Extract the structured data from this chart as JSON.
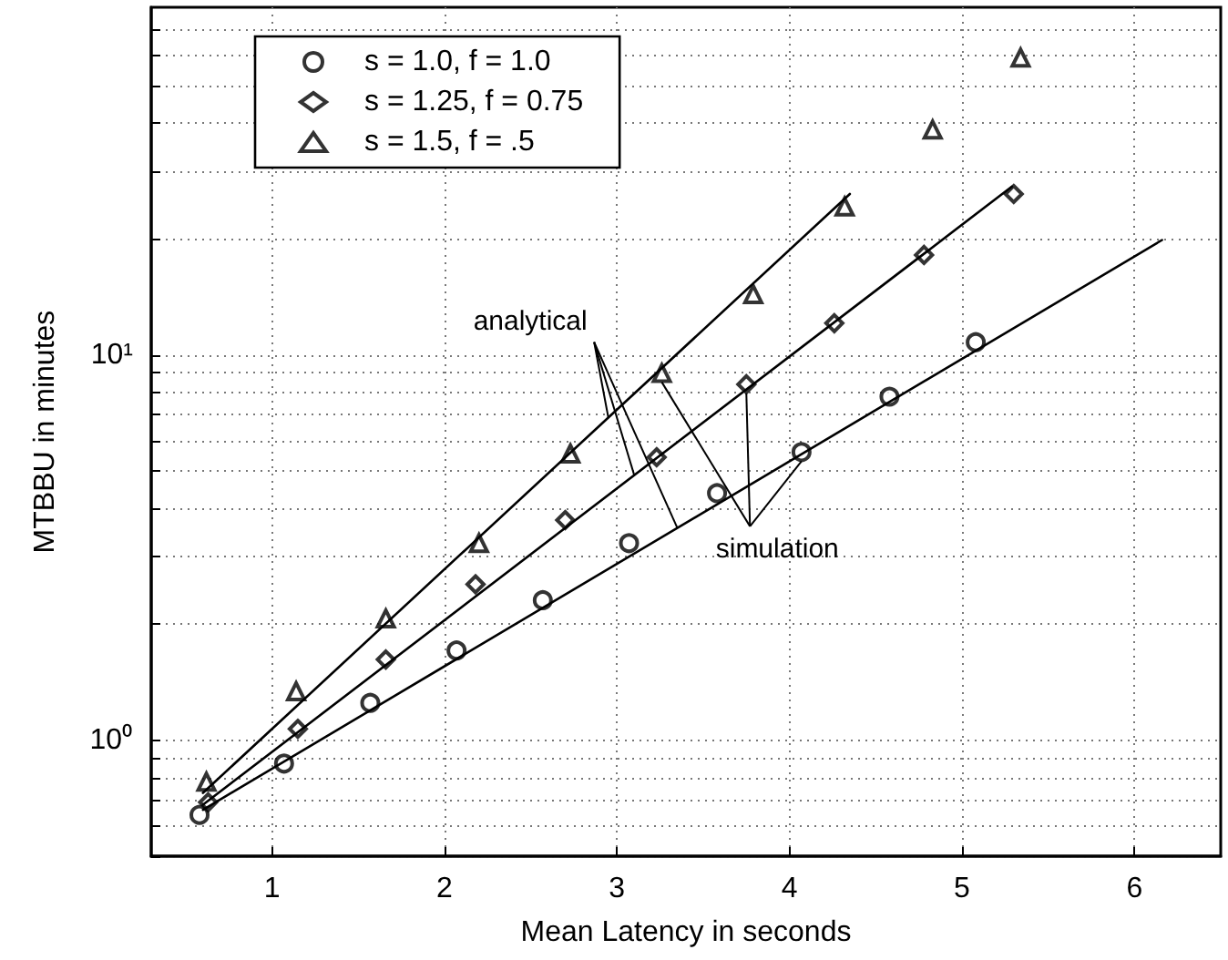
{
  "chart_data": {
    "type": "scatter",
    "xlabel": "Mean Latency in seconds",
    "ylabel": "MTBBU in minutes",
    "log": "y",
    "grid": true,
    "legend": "top left",
    "xlim": [
      0.3,
      6.5
    ],
    "xticks": [
      1,
      2,
      3,
      4,
      5,
      6
    ],
    "ylim": [
      0.5,
      80
    ],
    "yticks": [
      {
        "value": 0.5,
        "label": null
      },
      {
        "value": 0.6,
        "label": null
      },
      {
        "value": 0.7,
        "label": null
      },
      {
        "value": 0.8,
        "label": null
      },
      {
        "value": 0.9,
        "label": null
      },
      {
        "value": 1,
        "label": "10⁰"
      },
      {
        "value": 2,
        "label": null
      },
      {
        "value": 3,
        "label": null
      },
      {
        "value": 4,
        "label": null
      },
      {
        "value": 5,
        "label": null
      },
      {
        "value": 6,
        "label": null
      },
      {
        "value": 7,
        "label": null
      },
      {
        "value": 8,
        "label": null
      },
      {
        "value": 9,
        "label": null
      },
      {
        "value": 10,
        "label": "10¹"
      },
      {
        "value": 20,
        "label": null
      },
      {
        "value": 30,
        "label": null
      },
      {
        "value": 40,
        "label": null
      },
      {
        "value": 50,
        "label": null
      },
      {
        "value": 60,
        "label": null
      },
      {
        "value": 70,
        "label": null
      }
    ],
    "annotations": [
      {
        "text": "analytical",
        "x": 3.1,
        "y": 4.88
      },
      {
        "text": "simulation",
        "x": 3.75,
        "y": 8.4
      }
    ],
    "series": [
      {
        "name": "s = 1.0, f = 1.0",
        "color": "#000000",
        "marker": "circle",
        "x": [
          0.58,
          1.07,
          1.57,
          2.07,
          2.57,
          3.07,
          3.58,
          4.07,
          4.58,
          5.08
        ],
        "values": [
          0.64,
          0.87,
          1.25,
          1.71,
          2.31,
          3.25,
          4.38,
          5.6,
          7.8,
          10.8
        ]
      },
      {
        "name": "s = 1.25, f = 0.75",
        "color": "#000000",
        "marker": "diamond",
        "x": [
          0.63,
          1.15,
          1.66,
          2.18,
          2.7,
          3.23,
          3.75,
          4.26,
          4.78,
          5.3
        ],
        "values": [
          0.69,
          1.07,
          1.62,
          2.54,
          3.73,
          5.43,
          8.4,
          12.1,
          18.2,
          26.2
        ]
      },
      {
        "name": "s = 1.5, f = .5",
        "color": "#000000",
        "marker": "triangle",
        "x": [
          0.62,
          1.14,
          1.66,
          2.2,
          2.73,
          3.26,
          3.79,
          4.32,
          4.83,
          5.34
        ],
        "values": [
          0.78,
          1.34,
          2.07,
          3.25,
          5.55,
          8.98,
          14.4,
          24.3,
          38.5,
          59.2
        ]
      },
      {
        "type": "line",
        "color": "#000000",
        "marker": "none",
        "line_style": "solid",
        "x": [
          0.6,
          6.16
        ],
        "values": [
          0.66,
          19.9
        ]
      },
      {
        "type": "line",
        "color": "#000000",
        "marker": "none",
        "line_style": "solid",
        "x": [
          0.6,
          5.29
        ],
        "values": [
          0.68,
          27.4
        ]
      },
      {
        "type": "line",
        "color": "#000000",
        "marker": "none",
        "line_style": "solid",
        "x": [
          0.6,
          4.35
        ],
        "values": [
          0.73,
          26.2
        ]
      }
    ]
  }
}
